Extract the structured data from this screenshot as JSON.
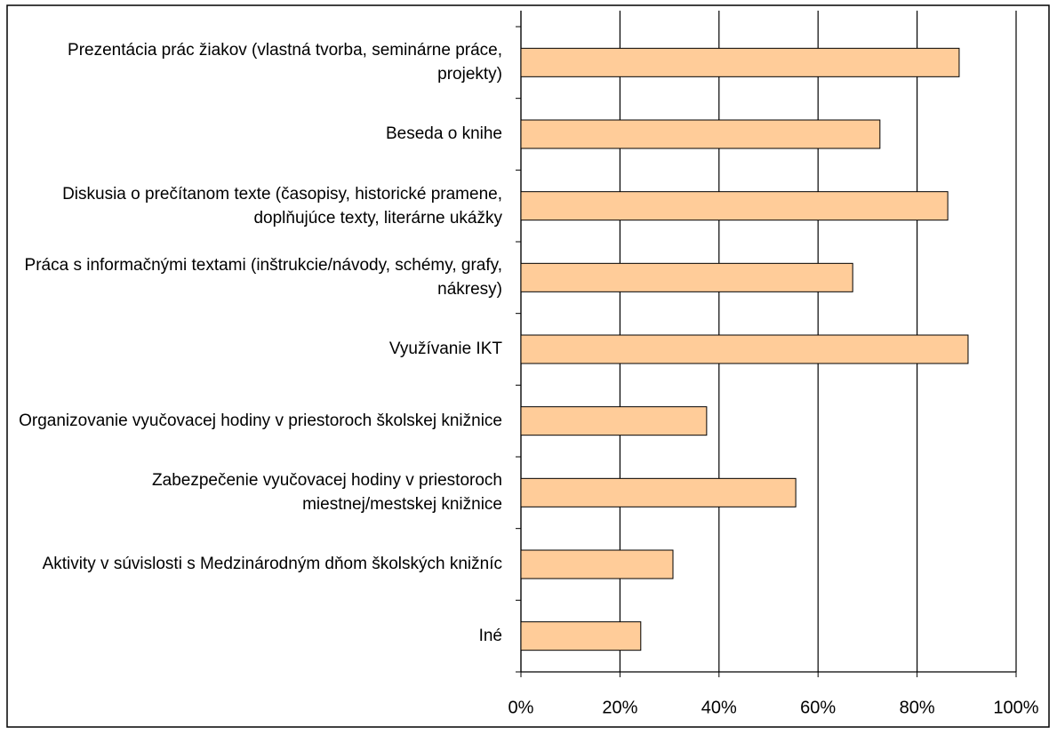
{
  "chart_data": {
    "type": "bar",
    "orientation": "horizontal",
    "categories": [
      "Prezentácia prác žiakov (vlastná tvorba, seminárne práce, projekty)",
      "Beseda o knihe",
      "Diskusia o prečítanom texte (časopisy, historické pramene, doplňujúce texty, literárne ukážky",
      "Práca s informačnými textami (inštrukcie/návody, schémy, grafy, nákresy)",
      "Využívanie IKT",
      "Organizovanie vyučovacej hodiny v priestoroch školskej knižnice",
      "Zabezpečenie vyučovacej hodiny v priestoroch miestnej/mestskej knižnice",
      "Aktivity v súvislosti s Medzinárodným dňom školských knižníc",
      "Iné"
    ],
    "values": [
      88.5,
      72.5,
      86.2,
      67,
      90.3,
      37.5,
      55.5,
      30.7,
      24.2
    ],
    "color": "#ffcc99",
    "xlim": [
      0,
      100
    ],
    "xticks": [
      {
        "value": 0,
        "label": "0%"
      },
      {
        "value": 20,
        "label": "20%"
      },
      {
        "value": 40,
        "label": "40%"
      },
      {
        "value": 60,
        "label": "60%"
      },
      {
        "value": 80,
        "label": "80%"
      },
      {
        "value": 100,
        "label": "100%"
      }
    ],
    "grid": true
  }
}
